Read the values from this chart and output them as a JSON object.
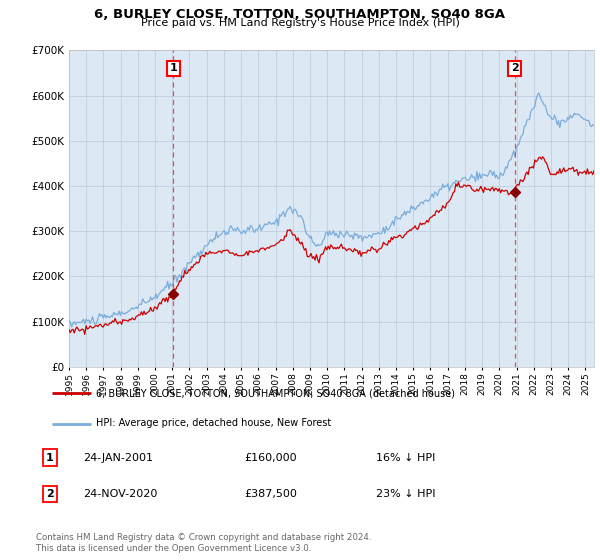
{
  "title": "6, BURLEY CLOSE, TOTTON, SOUTHAMPTON, SO40 8GA",
  "subtitle": "Price paid vs. HM Land Registry's House Price Index (HPI)",
  "legend_line1": "6, BURLEY CLOSE, TOTTON, SOUTHAMPTON, SO40 8GA (detached house)",
  "legend_line2": "HPI: Average price, detached house, New Forest",
  "annotation1_date": "24-JAN-2001",
  "annotation1_price": "£160,000",
  "annotation1_hpi": "16% ↓ HPI",
  "annotation2_date": "24-NOV-2020",
  "annotation2_price": "£387,500",
  "annotation2_hpi": "23% ↓ HPI",
  "footer": "Contains HM Land Registry data © Crown copyright and database right 2024.\nThis data is licensed under the Open Government Licence v3.0.",
  "house_color": "#cc0000",
  "hpi_color": "#7aaddb",
  "background_color": "#dce9f5",
  "ylim": [
    0,
    700000
  ],
  "yticks": [
    0,
    100000,
    200000,
    300000,
    400000,
    500000,
    600000,
    700000
  ],
  "marker1_x": 2001.07,
  "marker1_y": 160000,
  "marker2_x": 2020.9,
  "marker2_y": 387500,
  "xmin": 1995,
  "xmax": 2025.5
}
